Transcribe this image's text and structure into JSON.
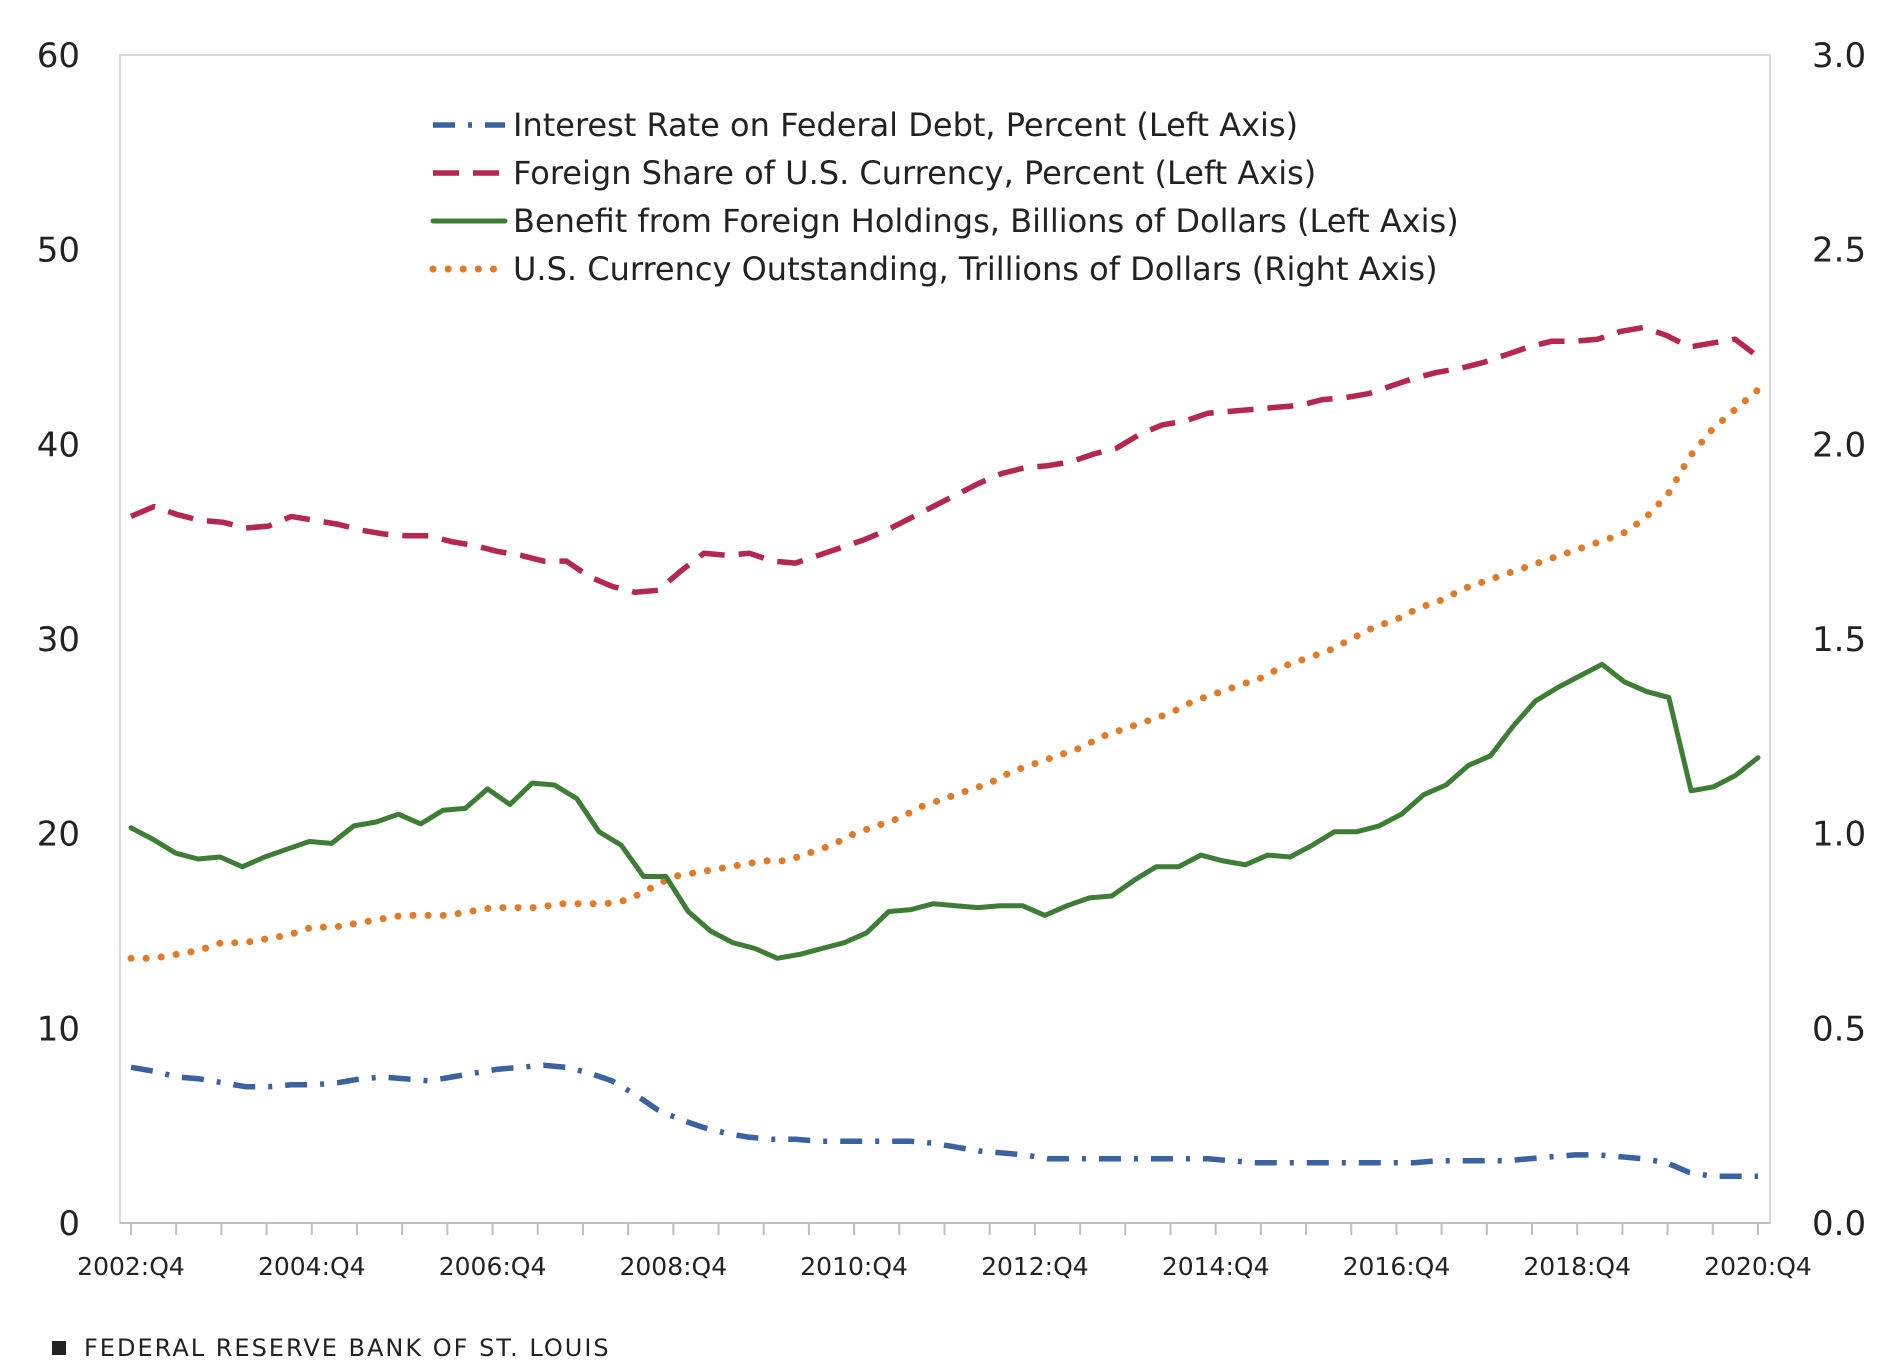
{
  "chart_data": {
    "type": "line",
    "title": "",
    "xlabel": "",
    "ylabel": "",
    "ylim_left": [
      0,
      60
    ],
    "ylim_right": [
      0.0,
      3.0
    ],
    "left_ticks": [
      "0",
      "10",
      "20",
      "30",
      "40",
      "50",
      "60"
    ],
    "right_ticks": [
      "0.0",
      "0.5",
      "1.0",
      "1.5",
      "2.0",
      "2.5",
      "3.0"
    ],
    "x_tick_labels": [
      "2002:Q4",
      "2004:Q4",
      "2006:Q4",
      "2008:Q4",
      "2010:Q4",
      "2012:Q4",
      "2014:Q4",
      "2016:Q4",
      "2018:Q4",
      "2020:Q4"
    ],
    "x_start": "2002:Q4",
    "grid": false,
    "legend_position": "top-center",
    "series": [
      {
        "name": "Interest Rate on Federal Debt, Percent (Left Axis)",
        "axis": "left",
        "color": "#3a62a0",
        "style": "dashdot",
        "values": [
          8.0,
          7.8,
          7.5,
          7.4,
          7.2,
          7.0,
          7.0,
          7.1,
          7.1,
          7.2,
          7.4,
          7.5,
          7.4,
          7.3,
          7.5,
          7.7,
          7.9,
          8.0,
          8.1,
          8.0,
          7.7,
          7.3,
          6.6,
          5.8,
          5.3,
          4.9,
          4.6,
          4.4,
          4.3,
          4.3,
          4.2,
          4.2,
          4.2,
          4.2,
          4.2,
          4.1,
          3.9,
          3.7,
          3.6,
          3.5,
          3.3,
          3.3,
          3.3,
          3.3,
          3.3,
          3.3,
          3.3,
          3.3,
          3.2,
          3.1,
          3.1,
          3.1,
          3.1,
          3.1,
          3.1,
          3.1,
          3.1,
          3.2,
          3.2,
          3.2,
          3.2,
          3.3,
          3.4,
          3.5,
          3.5,
          3.4,
          3.3,
          3.1,
          2.6,
          2.4,
          2.4,
          2.4
        ]
      },
      {
        "name": "Foreign Share of U.S. Currency, Percent (Left Axis)",
        "axis": "left",
        "color": "#b5274f",
        "style": "dashed",
        "values": [
          36.3,
          36.8,
          36.4,
          36.1,
          36.0,
          35.7,
          35.8,
          36.3,
          36.1,
          35.9,
          35.6,
          35.4,
          35.3,
          35.3,
          35.0,
          34.8,
          34.5,
          34.3,
          34.0,
          34.0,
          33.2,
          32.7,
          32.4,
          32.5,
          33.5,
          34.4,
          34.3,
          34.4,
          34.0,
          33.9,
          34.3,
          34.7,
          35.1,
          35.6,
          36.2,
          36.8,
          37.4,
          38.0,
          38.5,
          38.8,
          38.9,
          39.1,
          39.5,
          39.8,
          40.5,
          41.0,
          41.2,
          41.6,
          41.7,
          41.8,
          41.9,
          42.0,
          42.3,
          42.4,
          42.6,
          43.0,
          43.4,
          43.7,
          43.9,
          44.2,
          44.6,
          45.0,
          45.3,
          45.3,
          45.4,
          45.8,
          46.0,
          45.6,
          45.0,
          45.2,
          45.4,
          44.5
        ]
      },
      {
        "name": "Benefit from Foreign Holdings, Billions of Dollars (Left Axis)",
        "axis": "left",
        "color": "#3e7d35",
        "style": "solid",
        "values": [
          20.3,
          19.7,
          19.0,
          18.7,
          18.8,
          18.3,
          18.8,
          19.2,
          19.6,
          19.5,
          20.4,
          20.6,
          21.0,
          20.5,
          21.2,
          21.3,
          22.3,
          21.5,
          22.6,
          22.5,
          21.8,
          20.1,
          19.4,
          17.8,
          17.8,
          16.0,
          15.0,
          14.4,
          14.1,
          13.6,
          13.8,
          14.1,
          14.4,
          14.9,
          16.0,
          16.1,
          16.4,
          16.3,
          16.2,
          16.3,
          16.3,
          15.8,
          16.3,
          16.7,
          16.8,
          17.6,
          18.3,
          18.3,
          18.9,
          18.6,
          18.4,
          18.9,
          18.8,
          19.4,
          20.1,
          20.1,
          20.4,
          21.0,
          22.0,
          22.5,
          23.5,
          24.0,
          25.5,
          26.8,
          27.5,
          28.1,
          28.7,
          27.8,
          27.3,
          27.0,
          22.2,
          22.4,
          23.0,
          23.9
        ]
      },
      {
        "name": "U.S. Currency Outstanding, Trillions of Dollars (Right Axis)",
        "axis": "right",
        "color": "#e07b2a",
        "style": "dotted",
        "values": [
          0.68,
          0.68,
          0.69,
          0.7,
          0.72,
          0.72,
          0.73,
          0.74,
          0.76,
          0.76,
          0.77,
          0.78,
          0.79,
          0.79,
          0.79,
          0.8,
          0.81,
          0.81,
          0.81,
          0.82,
          0.82,
          0.82,
          0.83,
          0.86,
          0.89,
          0.9,
          0.91,
          0.92,
          0.93,
          0.93,
          0.95,
          0.97,
          1.0,
          1.02,
          1.04,
          1.07,
          1.09,
          1.11,
          1.13,
          1.16,
          1.18,
          1.2,
          1.22,
          1.25,
          1.27,
          1.29,
          1.31,
          1.34,
          1.36,
          1.38,
          1.4,
          1.43,
          1.45,
          1.47,
          1.5,
          1.53,
          1.55,
          1.58,
          1.6,
          1.63,
          1.65,
          1.67,
          1.69,
          1.71,
          1.73,
          1.75,
          1.77,
          1.81,
          1.87,
          1.97,
          2.04,
          2.09,
          2.14
        ]
      }
    ],
    "source": "FEDERAL RESERVE BANK OF ST. LOUIS"
  }
}
